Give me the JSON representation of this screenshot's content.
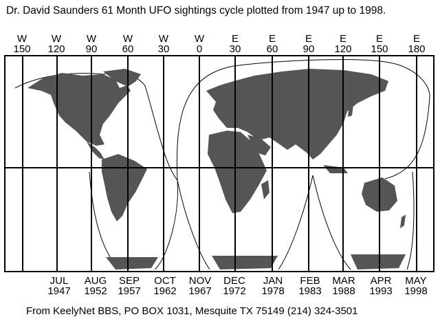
{
  "title": "Dr. David Saunders 61 Month UFO sightings cycle plotted from 1947 up to 1998.",
  "footer": "From KeelyNet BBS, PO BOX 1031, Mesquite TX 75149   (214) 324-3501",
  "longitudes": [
    {
      "dir": "W",
      "deg": "150"
    },
    {
      "dir": "W",
      "deg": "120"
    },
    {
      "dir": "W",
      "deg": "90"
    },
    {
      "dir": "W",
      "deg": "60"
    },
    {
      "dir": "W",
      "deg": "30"
    },
    {
      "dir": "W",
      "deg": "0"
    },
    {
      "dir": "E",
      "deg": "30"
    },
    {
      "dir": "E",
      "deg": "60"
    },
    {
      "dir": "E",
      "deg": "90"
    },
    {
      "dir": "E",
      "deg": "120"
    },
    {
      "dir": "E",
      "deg": "150"
    },
    {
      "dir": "E",
      "deg": "180"
    }
  ],
  "dates": [
    {
      "month": "JUL",
      "year": "1947"
    },
    {
      "month": "AUG",
      "year": "1952"
    },
    {
      "month": "SEP",
      "year": "1957"
    },
    {
      "month": "OCT",
      "year": "1962"
    },
    {
      "month": "NOV",
      "year": "1967"
    },
    {
      "month": "DEC",
      "year": "1972"
    },
    {
      "month": "JAN",
      "year": "1978"
    },
    {
      "month": "FEB",
      "year": "1983"
    },
    {
      "month": "MAR",
      "year": "1988"
    },
    {
      "month": "APR",
      "year": "1993"
    },
    {
      "month": "MAY",
      "year": "1998"
    }
  ],
  "colors": {
    "land": "#555555",
    "lines": "#000000",
    "background": "#ffffff"
  }
}
